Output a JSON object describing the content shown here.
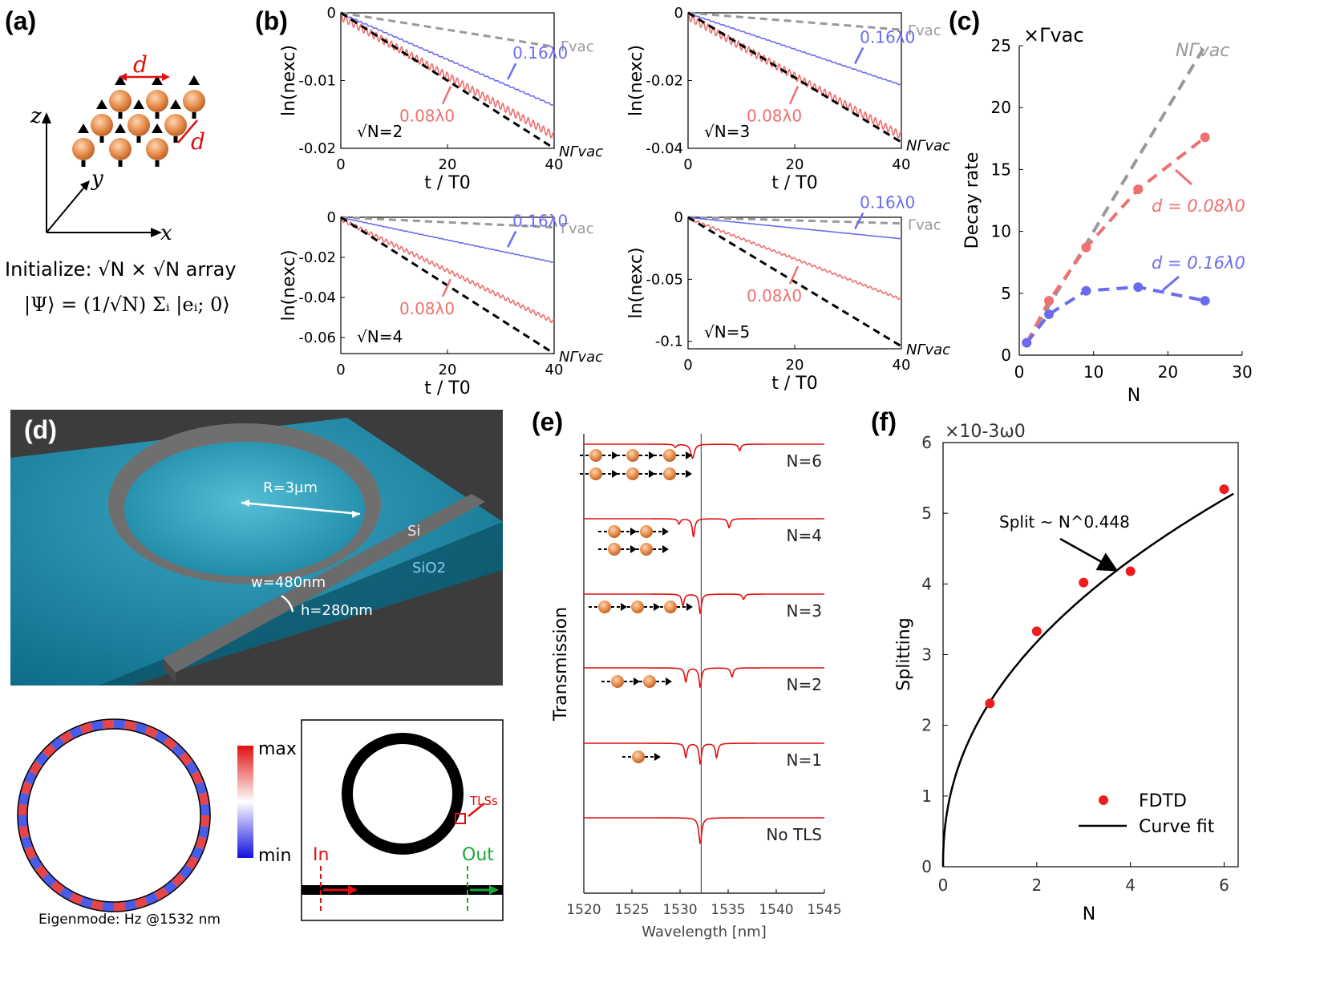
{
  "panels": {
    "a": {
      "label": "(a)",
      "axis_z": "z",
      "axis_y": "y",
      "axis_x": "x",
      "spacing_label": "d",
      "init_line1": "Initialize: √N × √N array",
      "init_line2": "|Ψ⟩ = (1/√N) Σᵢ |eᵢ; 0⟩"
    },
    "b": {
      "label": "(b)",
      "ylabel": "ln(n_exc)",
      "xlabel": "t / T0",
      "annotations": {
        "vac": "Γvac",
        "far": "0.16λ0",
        "near": "0.08λ0",
        "superradiant": "NΓvac"
      }
    },
    "c": {
      "label": "(c)",
      "unit": "×Γvac",
      "ylabel": "Decay rate",
      "xlabel": "N",
      "annotations": {
        "superradiant": "NΓvac",
        "near": "d = 0.08λ0",
        "far": "d = 0.16λ0"
      }
    },
    "d": {
      "label": "(d)",
      "radius": "R=3μm",
      "si": "Si",
      "sio2": "SiO2",
      "width": "w=480nm",
      "height": "h=280nm",
      "colorbar_max": "max",
      "colorbar_min": "min",
      "eigen_caption": "Eigenmode: Hz @1532 nm",
      "in_label": "In",
      "out_label": "Out",
      "tls_label": "TLSs"
    },
    "e": {
      "label": "(e)",
      "ylabel": "Transmission",
      "xlabel": "Wavelength [nm]",
      "traces": [
        "N=6",
        "N=4",
        "N=3",
        "N=2",
        "N=1",
        "No TLS"
      ]
    },
    "f": {
      "label": "(f)",
      "unit": "×10-3ω0",
      "ylabel": "Splitting",
      "xlabel": "N",
      "fit_label": "Split ~ N^0.448",
      "legend_fdtd": "FDTD",
      "legend_fit": "Curve fit"
    }
  },
  "chart_data": [
    {
      "id": "b1",
      "type": "line",
      "title": "√N=2",
      "xlabel": "t / T0",
      "ylabel": "ln(nexc)",
      "xlim": [
        0,
        40
      ],
      "ylim": [
        -0.02,
        0
      ],
      "xticks": [
        0,
        20,
        40
      ],
      "yticks": [
        0,
        -0.01,
        -0.02
      ],
      "ytick_labels": [
        "0",
        "-0.01",
        "-0.02"
      ],
      "series": [
        {
          "name": "Γvac",
          "slope": -0.000125,
          "color": "#999999",
          "style": "dashed"
        },
        {
          "name": "0.16λ0",
          "slope": -0.00034,
          "color": "#6b6bf0",
          "style": "solid",
          "osc": 0.00018
        },
        {
          "name": "0.08λ0",
          "slope": -0.00044,
          "color": "#f07070",
          "style": "solid",
          "osc": 0.0011
        },
        {
          "name": "NΓvac",
          "slope": -0.0005,
          "color": "#000000",
          "style": "dashed"
        }
      ]
    },
    {
      "id": "b2",
      "type": "line",
      "title": "√N=3",
      "xlabel": "t / T0",
      "ylabel": "ln(nexc)",
      "xlim": [
        0,
        40
      ],
      "ylim": [
        -0.04,
        0
      ],
      "xticks": [
        0,
        20,
        40
      ],
      "yticks": [
        0,
        -0.02,
        -0.04
      ],
      "ytick_labels": [
        "0",
        "-0.02",
        "-0.04"
      ],
      "series": [
        {
          "name": "Γvac",
          "slope": -0.000125,
          "color": "#999999",
          "style": "dashed"
        },
        {
          "name": "0.16λ0",
          "slope": -0.00053,
          "color": "#6b6bf0",
          "style": "solid",
          "osc": 0.00025
        },
        {
          "name": "0.08λ0",
          "slope": -0.00088,
          "color": "#f07070",
          "style": "solid",
          "osc": 0.0022
        },
        {
          "name": "NΓvac",
          "slope": -0.000955,
          "color": "#000000",
          "style": "dashed"
        }
      ]
    },
    {
      "id": "b3",
      "type": "line",
      "title": "√N=4",
      "xlabel": "t / T0",
      "ylabel": "ln(nexc)",
      "xlim": [
        0,
        40
      ],
      "ylim": [
        -0.068,
        0
      ],
      "xticks": [
        0,
        20,
        40
      ],
      "yticks": [
        0,
        -0.02,
        -0.04,
        -0.06
      ],
      "ytick_labels": [
        "0",
        "-0.02",
        "-0.04",
        "-0.06"
      ],
      "series": [
        {
          "name": "Γvac",
          "slope": -0.000125,
          "color": "#999999",
          "style": "dashed"
        },
        {
          "name": "0.16λ0",
          "slope": -0.00056,
          "color": "#6b6bf0",
          "style": "solid",
          "osc": 0.00025
        },
        {
          "name": "0.08λ0",
          "slope": -0.00128,
          "color": "#f07070",
          "style": "solid",
          "osc": 0.002
        },
        {
          "name": "NΓvac",
          "slope": -0.0017,
          "color": "#000000",
          "style": "dashed"
        }
      ]
    },
    {
      "id": "b4",
      "type": "line",
      "title": "√N=5",
      "xlabel": "t / T0",
      "ylabel": "ln(nexc)",
      "xlim": [
        0,
        40
      ],
      "ylim": [
        -0.106,
        0
      ],
      "xticks": [
        0,
        20,
        40
      ],
      "yticks": [
        0,
        -0.05,
        -0.1
      ],
      "ytick_labels": [
        "0",
        "-0.05",
        "-0.1"
      ],
      "series": [
        {
          "name": "Γvac",
          "slope": -0.000125,
          "color": "#999999",
          "style": "dashed"
        },
        {
          "name": "0.16λ0",
          "slope": -0.00043,
          "color": "#6b6bf0",
          "style": "solid",
          "osc": 0.0002
        },
        {
          "name": "0.08λ0",
          "slope": -0.00163,
          "color": "#f07070",
          "style": "solid",
          "osc": 0.0018
        },
        {
          "name": "NΓvac",
          "slope": -0.0026,
          "color": "#000000",
          "style": "dashed"
        }
      ]
    },
    {
      "id": "c",
      "type": "line",
      "xlabel": "N",
      "ylabel": "Decay rate",
      "xlim": [
        0,
        30
      ],
      "ylim": [
        0,
        25
      ],
      "xticks": [
        0,
        10,
        20,
        30
      ],
      "yticks": [
        0,
        5,
        10,
        15,
        20,
        25
      ],
      "series": [
        {
          "name": "NΓvac",
          "x": [
            1,
            25
          ],
          "y": [
            1,
            25
          ],
          "color": "#999999",
          "style": "dashed",
          "markers": false
        },
        {
          "name": "d = 0.08λ0",
          "x": [
            1,
            4,
            9,
            16,
            25
          ],
          "y": [
            1.0,
            4.4,
            8.7,
            13.4,
            17.6
          ],
          "color": "#f07070",
          "style": "dashed",
          "markers": true
        },
        {
          "name": "d = 0.16λ0",
          "x": [
            1,
            4,
            9,
            16,
            25
          ],
          "y": [
            1.0,
            3.3,
            5.2,
            5.5,
            4.4
          ],
          "color": "#6b6bf0",
          "style": "dashed",
          "markers": true
        }
      ]
    },
    {
      "id": "e",
      "type": "line",
      "xlabel": "Wavelength [nm]",
      "ylabel": "Transmission",
      "xlim": [
        1520,
        1545
      ],
      "xticks": [
        1520,
        1525,
        1530,
        1535,
        1540,
        1545
      ],
      "marker_line": 1532.2,
      "series": [
        {
          "name": "N=6",
          "dips": [
            [
              1529.5,
              0.15,
              0.12
            ],
            [
              1531.3,
              0.22,
              0.55
            ],
            [
              1536.2,
              0.15,
              0.25
            ]
          ]
        },
        {
          "name": "N=4",
          "dips": [
            [
              1529.9,
              0.15,
              0.2
            ],
            [
              1531.4,
              0.15,
              0.7
            ],
            [
              1535.1,
              0.15,
              0.35
            ]
          ]
        },
        {
          "name": "N=3",
          "dips": [
            [
              1530.3,
              0.15,
              0.45
            ],
            [
              1532.1,
              0.15,
              0.75
            ],
            [
              1536.6,
              0.15,
              0.2
            ]
          ]
        },
        {
          "name": "N=2",
          "dips": [
            [
              1530.6,
              0.15,
              0.55
            ],
            [
              1532.1,
              0.15,
              0.75
            ],
            [
              1535.4,
              0.15,
              0.35
            ]
          ]
        },
        {
          "name": "N=1",
          "dips": [
            [
              1530.6,
              0.15,
              0.55
            ],
            [
              1532.1,
              0.15,
              0.8
            ],
            [
              1533.8,
              0.15,
              0.55
            ]
          ]
        },
        {
          "name": "No TLS",
          "dips": [
            [
              1532.1,
              0.18,
              1.0
            ]
          ]
        }
      ]
    },
    {
      "id": "f",
      "type": "scatter",
      "xlabel": "N",
      "ylabel": "Splitting",
      "xlim": [
        0,
        6.3
      ],
      "ylim": [
        0,
        6
      ],
      "xticks": [
        0,
        2,
        4,
        6
      ],
      "yticks": [
        0,
        1,
        2,
        3,
        4,
        5,
        6
      ],
      "series": [
        {
          "name": "FDTD",
          "x": [
            1,
            2,
            3,
            4,
            6
          ],
          "y": [
            2.31,
            3.33,
            4.02,
            4.18,
            5.34
          ],
          "color": "#ee1c1c"
        },
        {
          "name": "Curve fit",
          "fit_coefficient": 2.33,
          "fit_exponent": 0.448,
          "color": "#000000"
        }
      ]
    }
  ]
}
